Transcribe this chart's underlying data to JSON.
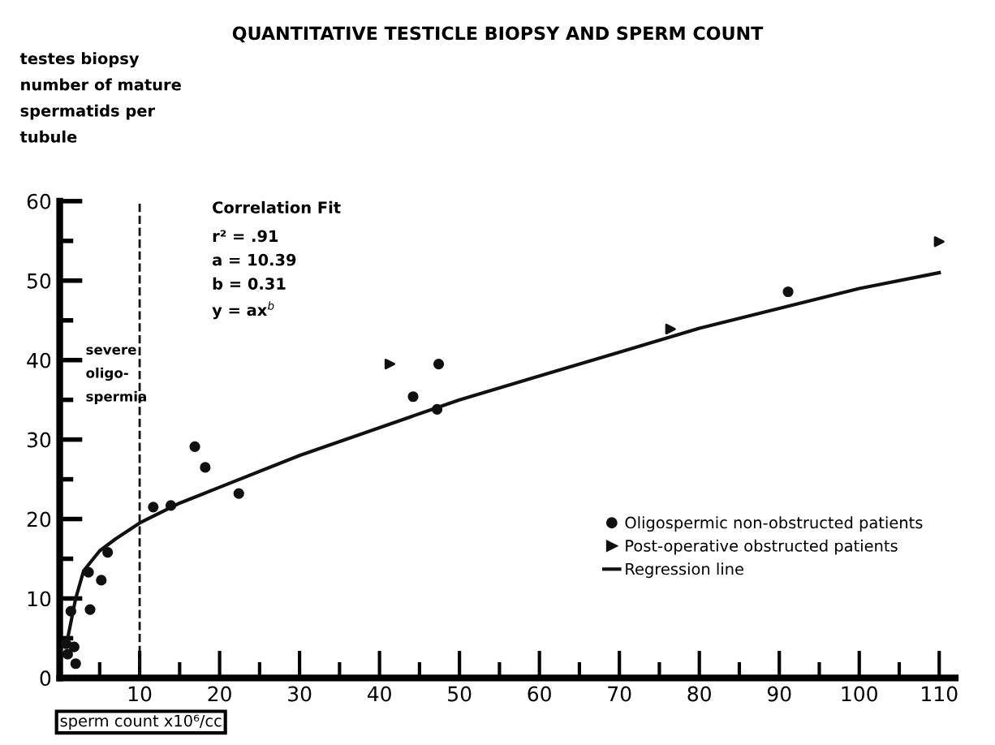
{
  "chart_data": {
    "type": "scatter",
    "title": "QUANTITATIVE TESTICLE BIOPSY AND SPERM COUNT",
    "xlabel": "sperm count x10⁶/cc",
    "ylabel": "testes biopsy\nnumber of mature\nspermatids per\ntubule",
    "xlim": [
      0,
      112
    ],
    "ylim": [
      0,
      60
    ],
    "xticks": [
      {
        "value": 5,
        "label": null
      },
      10,
      {
        "value": 15,
        "label": null
      },
      20,
      {
        "value": 25,
        "label": null
      },
      30,
      {
        "value": 35,
        "label": null
      },
      40,
      {
        "value": 45,
        "label": null
      },
      50,
      {
        "value": 55,
        "label": null
      },
      60,
      {
        "value": 65,
        "label": null
      },
      70,
      {
        "value": 75,
        "label": null
      },
      80,
      {
        "value": 85,
        "label": null
      },
      90,
      {
        "value": 95,
        "label": null
      },
      100,
      {
        "value": 105,
        "label": null
      },
      110
    ],
    "yticks": [
      0,
      {
        "value": 5,
        "label": null
      },
      10,
      {
        "value": 15,
        "label": null
      },
      20,
      {
        "value": 25,
        "label": null
      },
      30,
      {
        "value": 35,
        "label": null
      },
      40,
      {
        "value": 45,
        "label": null
      },
      50,
      {
        "value": 55,
        "label": null
      },
      60
    ],
    "grid": false,
    "legend": "bottom right",
    "series": [
      {
        "name": "Oligospermic non-obstructed patients",
        "marker": "circle",
        "color": "#111111",
        "x": [
          0.8,
          1.0,
          1.4,
          1.8,
          2.0,
          3.6,
          3.8,
          5.2,
          6.0,
          11.7,
          13.9,
          16.9,
          18.2,
          22.4,
          44.2,
          47.2,
          47.4,
          91.1
        ],
        "values": [
          4.3,
          3.0,
          8.4,
          3.9,
          1.8,
          13.3,
          8.6,
          12.3,
          15.8,
          21.5,
          21.7,
          29.1,
          26.5,
          23.2,
          35.4,
          33.8,
          39.5,
          48.6
        ]
      },
      {
        "name": "Post-operative obstructed patients",
        "marker": "triangle",
        "color": "#111111",
        "x": [
          41.3,
          76.4,
          110.0
        ],
        "values": [
          39.5,
          43.9,
          54.9
        ]
      },
      {
        "name": "Regression line",
        "type": "line",
        "marker": "none",
        "line_style": "solid",
        "color": "#111111",
        "x": [
          1,
          2,
          3,
          5,
          7,
          10,
          15,
          20,
          30,
          40,
          50,
          60,
          70,
          80,
          90,
          100,
          110
        ],
        "values": [
          5,
          10,
          13.5,
          16,
          17.5,
          19.5,
          22,
          24,
          28,
          31.5,
          35,
          38,
          41,
          44,
          46.5,
          49,
          51
        ]
      }
    ],
    "ref_lines": [
      {
        "axis": "x",
        "value": 10,
        "line_style": "dashed",
        "color": "#111111"
      }
    ],
    "annotations": [
      "Correlation Fit",
      "r² = .91",
      "a = 10.39",
      "b = 0.31",
      "y = ax$^{b}$",
      "severe\noligo-\nspermia"
    ]
  }
}
